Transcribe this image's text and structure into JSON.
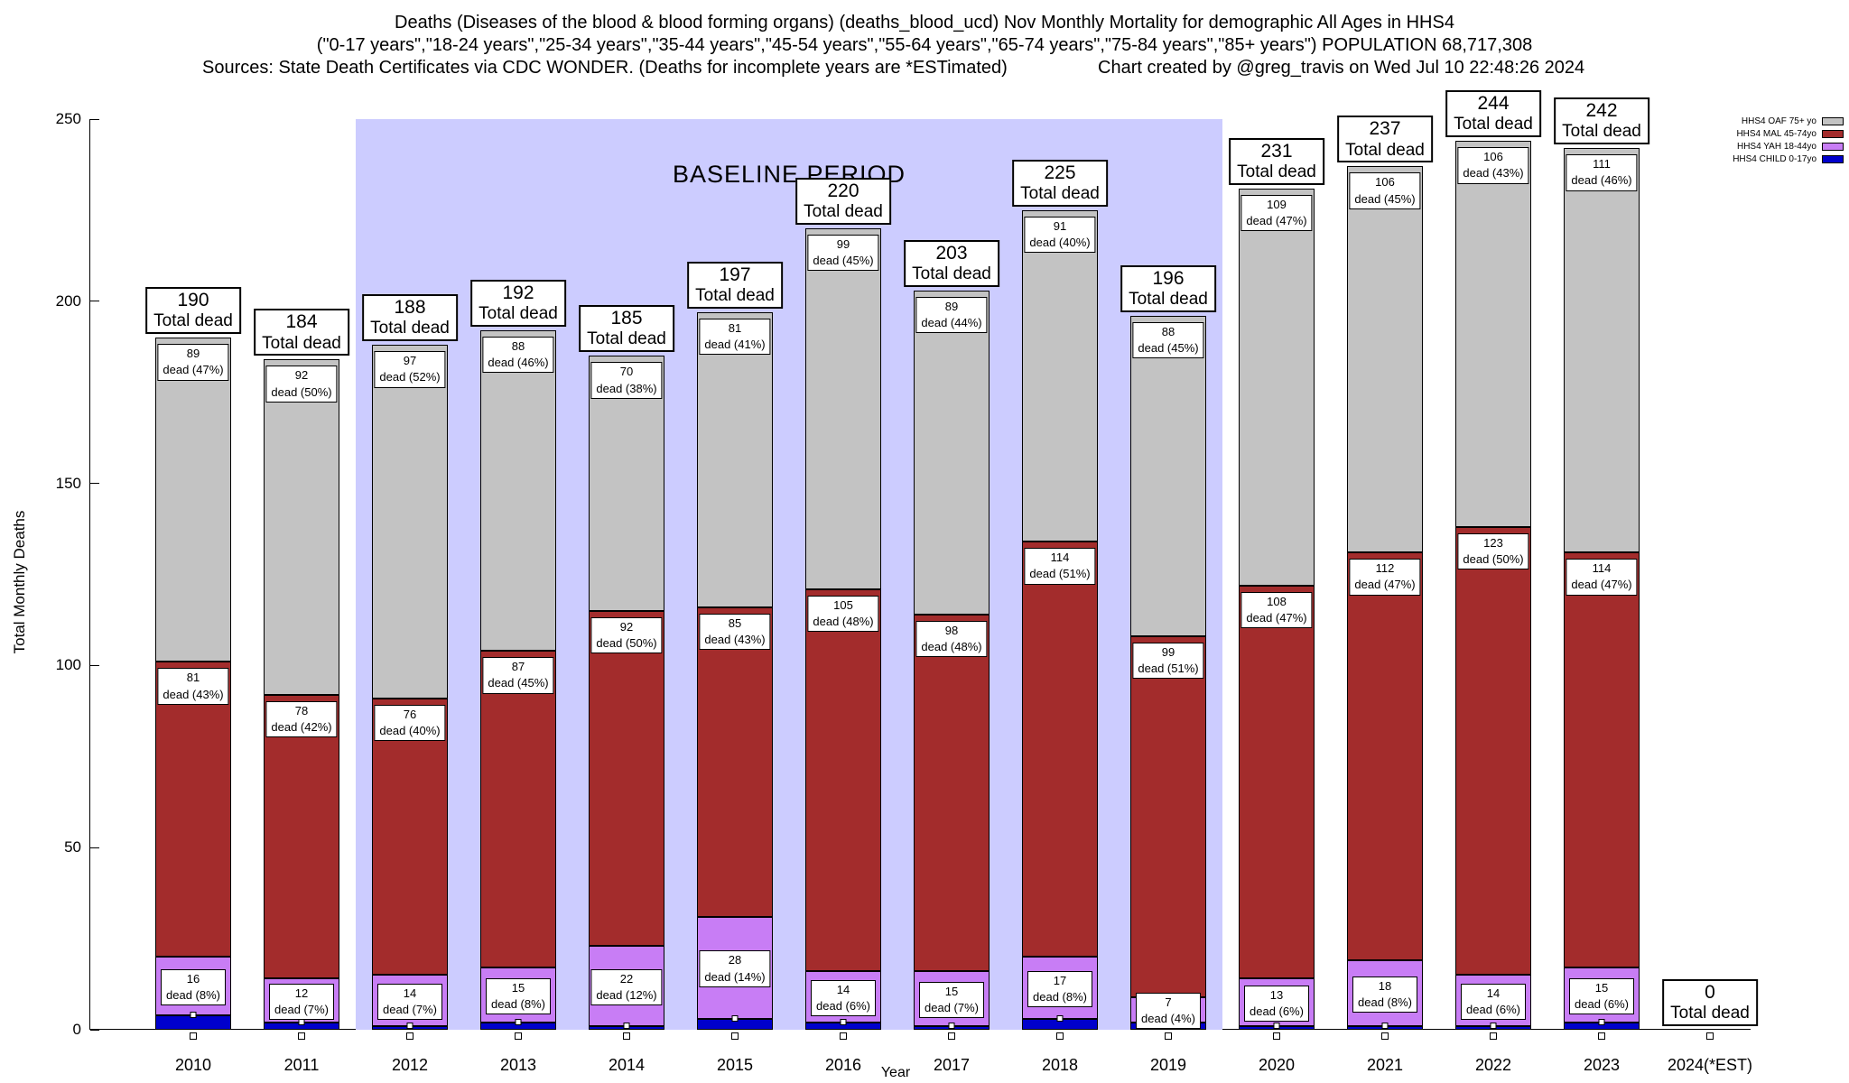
{
  "title": {
    "line1": "Deaths (Diseases of the blood & blood forming organs) (deaths_blood_ucd) Nov Monthly Mortality for demographic All Ages in HHS4",
    "line2": "(\"0-17 years\",\"18-24 years\",\"25-34 years\",\"35-44 years\",\"45-54 years\",\"55-64 years\",\"65-74 years\",\"75-84 years\",\"85+ years\") POPULATION 68,717,308",
    "line3_sources": "Sources: State Death Certificates via CDC WONDER. (Deaths for incomplete years are *ESTimated)",
    "line3_credit": "Chart created by @greg_travis on Wed Jul 10 22:48:26 2024"
  },
  "axes": {
    "y_label": "Total Monthly Deaths",
    "x_label": "Year"
  },
  "legend": {
    "items": [
      {
        "key": "oaf",
        "label": "HHS4 OAF 75+ yo"
      },
      {
        "key": "mal",
        "label": "HHS4 MAL 45-74yo"
      },
      {
        "key": "yah",
        "label": "HHS4 YAH 18-44yo"
      },
      {
        "key": "child",
        "label": "HHS4 CHILD 0-17yo"
      }
    ]
  },
  "chart_data": {
    "type": "bar",
    "stacked": true,
    "title": "Deaths (Diseases of the blood & blood forming organs) Nov Monthly Mortality for All Ages in HHS4",
    "xlabel": "Year",
    "ylabel": "Total Monthly Deaths",
    "ylim": [
      0,
      250
    ],
    "y_ticks": [
      0,
      50,
      100,
      150,
      200,
      250
    ],
    "total_label_suffix": "Total dead",
    "baseline_period": {
      "label": "BASELINE PERIOD",
      "from": "2012",
      "to": "2019",
      "color": "#ccccff"
    },
    "stack_order_bottom_to_top": [
      "child",
      "yah",
      "mal",
      "oaf"
    ],
    "segment_colors": {
      "oaf": "#c3c3c3",
      "mal": "#a32c2c",
      "yah": "#c87df5",
      "child": "#0000cc"
    },
    "segment_names": {
      "oaf": "HHS4 OAF 75+ yo",
      "mal": "HHS4 MAL 45-74yo",
      "yah": "HHS4 YAH 18-44yo",
      "child": "HHS4 CHILD 0-17yo"
    },
    "bars": [
      {
        "year": "2010",
        "total": 190,
        "segments": {
          "child": {
            "v": 4
          },
          "yah": {
            "v": 16,
            "pct": "8%"
          },
          "mal": {
            "v": 81,
            "pct": "43%"
          },
          "oaf": {
            "v": 89,
            "pct": "47%"
          }
        }
      },
      {
        "year": "2011",
        "total": 184,
        "segments": {
          "child": {
            "v": 2
          },
          "yah": {
            "v": 12,
            "pct": "7%"
          },
          "mal": {
            "v": 78,
            "pct": "42%"
          },
          "oaf": {
            "v": 92,
            "pct": "50%"
          }
        }
      },
      {
        "year": "2012",
        "total": 188,
        "segments": {
          "child": {
            "v": 1
          },
          "yah": {
            "v": 14,
            "pct": "7%"
          },
          "mal": {
            "v": 76,
            "pct": "40%"
          },
          "oaf": {
            "v": 97,
            "pct": "52%"
          }
        }
      },
      {
        "year": "2013",
        "total": 192,
        "segments": {
          "child": {
            "v": 2
          },
          "yah": {
            "v": 15,
            "pct": "8%"
          },
          "mal": {
            "v": 87,
            "pct": "45%"
          },
          "oaf": {
            "v": 88,
            "pct": "46%"
          }
        }
      },
      {
        "year": "2014",
        "total": 185,
        "segments": {
          "child": {
            "v": 1
          },
          "yah": {
            "v": 22,
            "pct": "12%"
          },
          "mal": {
            "v": 92,
            "pct": "50%"
          },
          "oaf": {
            "v": 70,
            "pct": "38%"
          }
        }
      },
      {
        "year": "2015",
        "total": 197,
        "segments": {
          "child": {
            "v": 3
          },
          "yah": {
            "v": 28,
            "pct": "14%"
          },
          "mal": {
            "v": 85,
            "pct": "43%"
          },
          "oaf": {
            "v": 81,
            "pct": "41%"
          }
        }
      },
      {
        "year": "2016",
        "total": 220,
        "segments": {
          "child": {
            "v": 2
          },
          "yah": {
            "v": 14,
            "pct": "6%"
          },
          "mal": {
            "v": 105,
            "pct": "48%"
          },
          "oaf": {
            "v": 99,
            "pct": "45%"
          }
        }
      },
      {
        "year": "2017",
        "total": 203,
        "segments": {
          "child": {
            "v": 1
          },
          "yah": {
            "v": 15,
            "pct": "7%"
          },
          "mal": {
            "v": 98,
            "pct": "48%"
          },
          "oaf": {
            "v": 89,
            "pct": "44%"
          }
        }
      },
      {
        "year": "2018",
        "total": 225,
        "segments": {
          "child": {
            "v": 3
          },
          "yah": {
            "v": 17,
            "pct": "8%"
          },
          "mal": {
            "v": 114,
            "pct": "51%"
          },
          "oaf": {
            "v": 91,
            "pct": "40%"
          }
        }
      },
      {
        "year": "2019",
        "total": 196,
        "segments": {
          "child": {
            "v": 2
          },
          "yah": {
            "v": 7,
            "pct": "4%"
          },
          "mal": {
            "v": 99,
            "pct": "51%"
          },
          "oaf": {
            "v": 88,
            "pct": "45%"
          }
        }
      },
      {
        "year": "2020",
        "total": 231,
        "segments": {
          "child": {
            "v": 1
          },
          "yah": {
            "v": 13,
            "pct": "6%"
          },
          "mal": {
            "v": 108,
            "pct": "47%"
          },
          "oaf": {
            "v": 109,
            "pct": "47%"
          }
        }
      },
      {
        "year": "2021",
        "total": 237,
        "segments": {
          "child": {
            "v": 1
          },
          "yah": {
            "v": 18,
            "pct": "8%"
          },
          "mal": {
            "v": 112,
            "pct": "47%"
          },
          "oaf": {
            "v": 106,
            "pct": "45%"
          }
        }
      },
      {
        "year": "2022",
        "total": 244,
        "segments": {
          "child": {
            "v": 1
          },
          "yah": {
            "v": 14,
            "pct": "6%"
          },
          "mal": {
            "v": 123,
            "pct": "50%"
          },
          "oaf": {
            "v": 106,
            "pct": "43%"
          }
        }
      },
      {
        "year": "2023",
        "total": 242,
        "segments": {
          "child": {
            "v": 2
          },
          "yah": {
            "v": 15,
            "pct": "6%"
          },
          "mal": {
            "v": 114,
            "pct": "47%"
          },
          "oaf": {
            "v": 111,
            "pct": "46%"
          }
        }
      },
      {
        "year": "2024(*EST)",
        "total": 0,
        "segments": {}
      }
    ]
  }
}
